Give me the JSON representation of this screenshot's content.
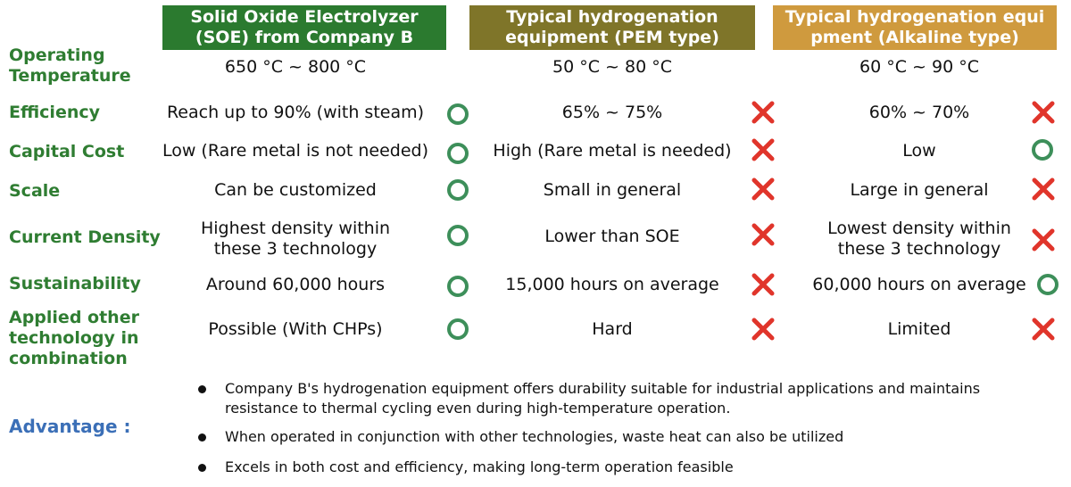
{
  "columns": [
    {
      "line1": "Solid Oxide Electrolyzer",
      "line2": "(SOE) from Company B",
      "color": "#2b7a2f"
    },
    {
      "line1": "Typical hydrogenation",
      "line2": "equipment (PEM type)",
      "color": "#7f7529"
    },
    {
      "line1": "Typical hydrogenation equi",
      "line2": "pment (Alkaline type)",
      "color": "#cf9a3e"
    }
  ],
  "rows": [
    {
      "label": [
        "Operating",
        "Temperature"
      ],
      "cells": [
        [
          "650 °C ~ 800 °C"
        ],
        [
          "50 °C ~ 80 °C"
        ],
        [
          "60 °C ~ 90 °C"
        ]
      ],
      "marks": [
        "",
        "",
        ""
      ]
    },
    {
      "label": [
        "Efficiency"
      ],
      "cells": [
        [
          "Reach up to 90% (with steam)"
        ],
        [
          "65% ~ 75%"
        ],
        [
          "60% ~ 70%"
        ]
      ],
      "marks": [
        "circle",
        "cross",
        "cross"
      ]
    },
    {
      "label": [
        "Capital Cost"
      ],
      "cells": [
        [
          "Low (Rare metal is not needed)"
        ],
        [
          "High (Rare metal is needed)"
        ],
        [
          "Low"
        ]
      ],
      "marks": [
        "circle",
        "cross",
        "circle"
      ]
    },
    {
      "label": [
        "Scale"
      ],
      "cells": [
        [
          "Can be customized"
        ],
        [
          "Small in general"
        ],
        [
          "Large in general"
        ]
      ],
      "marks": [
        "circle",
        "cross",
        "cross"
      ]
    },
    {
      "label": [
        "Current Density"
      ],
      "cells": [
        [
          "Highest density within",
          "these 3 technology"
        ],
        [
          "Lower than SOE"
        ],
        [
          "Lowest density within",
          "these 3 technology"
        ]
      ],
      "marks": [
        "circle",
        "cross",
        "cross"
      ]
    },
    {
      "label": [
        "Sustainability"
      ],
      "cells": [
        [
          "Around 60,000 hours"
        ],
        [
          "15,000 hours on average"
        ],
        [
          "60,000 hours on average"
        ]
      ],
      "marks": [
        "circle",
        "cross",
        "circle"
      ]
    },
    {
      "label": [
        "Applied other",
        "technology in",
        "combination"
      ],
      "cells": [
        [
          "Possible (With CHPs)"
        ],
        [
          "Hard"
        ],
        [
          "Limited"
        ]
      ],
      "marks": [
        "circle",
        "cross",
        "cross"
      ]
    }
  ],
  "advantage": {
    "label": "Advantage :",
    "bullets": [
      "Company B's hydrogenation equipment offers durability suitable for industrial applications and maintains resistance to thermal cycling even during high-temperature operation.",
      "When operated in conjunction with other technologies, waste heat can also be utilized",
      "Excels in both cost and efficiency, making long-term operation feasible"
    ]
  },
  "colors": {
    "label_green": "#2f7d32",
    "circle": "#3d8f5a",
    "cross": "#e0352b",
    "advantage_blue": "#3b6fb7"
  }
}
